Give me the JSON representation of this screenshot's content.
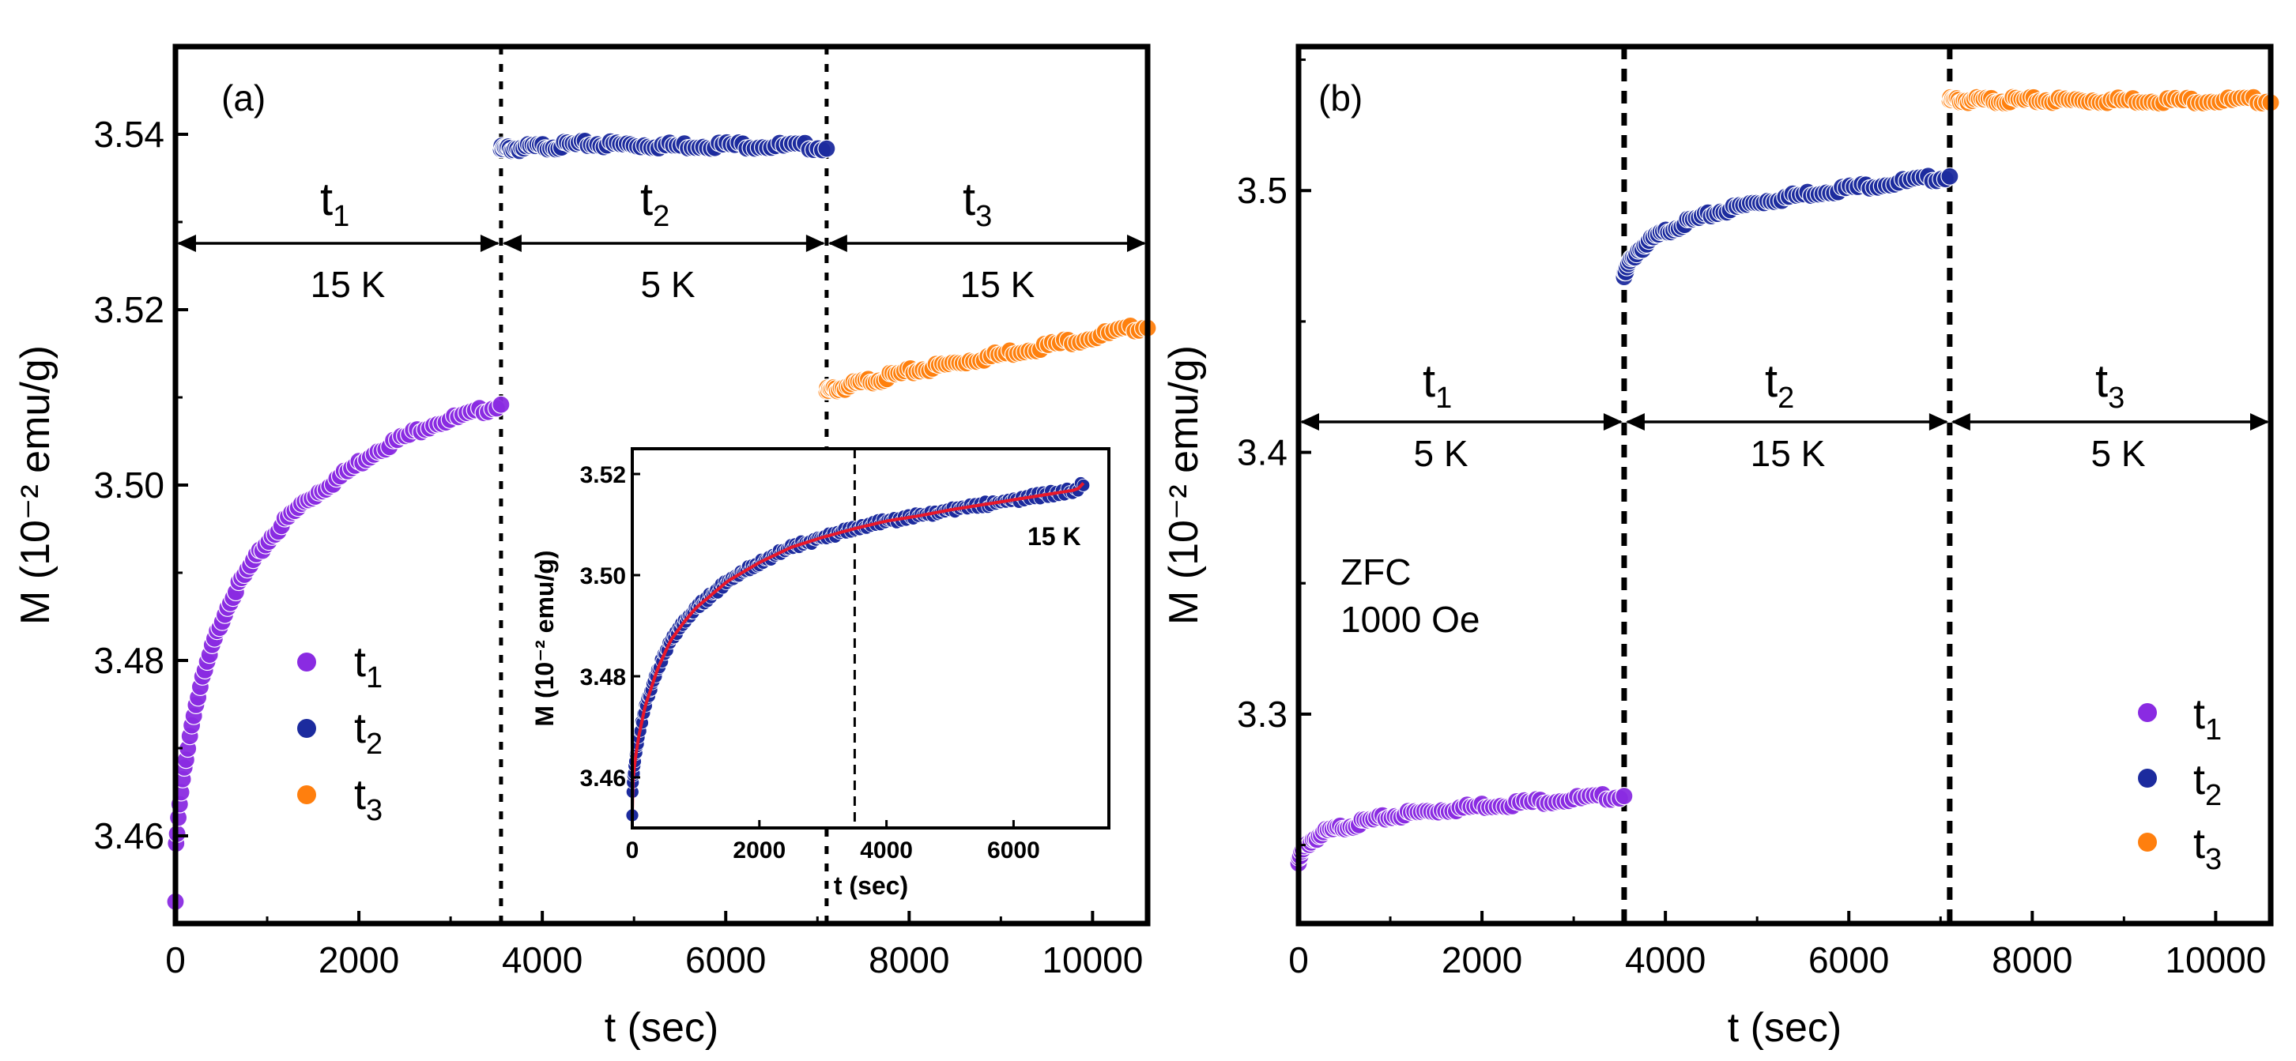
{
  "chart_data": [
    {
      "type": "scatter",
      "panel_label": "(a)",
      "xlabel": "t (sec)",
      "ylabel": "M (10⁻² emu/g)",
      "xlim": [
        0,
        10600
      ],
      "ylim": [
        3.45,
        3.55
      ],
      "xticks": [
        "0",
        "2000",
        "4000",
        "6000",
        "8000",
        "10000"
      ],
      "yticks": [
        "3.46",
        "3.48",
        "3.50",
        "3.52",
        "3.54"
      ],
      "segment_boundaries": [
        3550,
        7100
      ],
      "segments": [
        {
          "name": "t1",
          "temperature": "15 K"
        },
        {
          "name": "t2",
          "temperature": "5 K"
        },
        {
          "name": "t3",
          "temperature": "15 K"
        }
      ],
      "series": [
        {
          "name": "t1",
          "color": "#8a2be2",
          "points": [
            [
              0,
              3.4525
            ],
            [
              5,
              3.4585
            ],
            [
              20,
              3.4605
            ],
            [
              40,
              3.463
            ],
            [
              70,
              3.4655
            ],
            [
              100,
              3.468
            ],
            [
              150,
              3.471
            ],
            [
              200,
              3.474
            ],
            [
              300,
              3.478
            ],
            [
              400,
              3.4815
            ],
            [
              500,
              3.4845
            ],
            [
              600,
              3.487
            ],
            [
              800,
              3.4905
            ],
            [
              1000,
              3.4935
            ],
            [
              1200,
              3.496
            ],
            [
              1400,
              3.498
            ],
            [
              1600,
              3.4995
            ],
            [
              1800,
              3.501
            ],
            [
              2000,
              3.5025
            ],
            [
              2200,
              3.504
            ],
            [
              2400,
              3.505
            ],
            [
              2600,
              3.506
            ],
            [
              2800,
              3.507
            ],
            [
              3000,
              3.5075
            ],
            [
              3200,
              3.508
            ],
            [
              3400,
              3.5087
            ],
            [
              3550,
              3.5092
            ]
          ]
        },
        {
          "name": "t2",
          "color": "#1c2b9e",
          "points": [
            [
              3550,
              3.5383
            ],
            [
              4000,
              3.5386
            ],
            [
              4500,
              3.5389
            ],
            [
              5000,
              3.5388
            ],
            [
              5500,
              3.5387
            ],
            [
              6000,
              3.5388
            ],
            [
              6500,
              3.5387
            ],
            [
              7000,
              3.5386
            ],
            [
              7100,
              3.5384
            ]
          ]
        },
        {
          "name": "t3",
          "color": "#ff7f0e",
          "points": [
            [
              7100,
              3.5107
            ],
            [
              7500,
              3.5117
            ],
            [
              8000,
              3.5129
            ],
            [
              8500,
              3.5139
            ],
            [
              9000,
              3.5149
            ],
            [
              9500,
              3.5159
            ],
            [
              10000,
              3.5169
            ],
            [
              10600,
              3.5182
            ]
          ]
        }
      ],
      "legend": [
        "t1",
        "t2",
        "t3"
      ],
      "inset": {
        "type": "scatter",
        "xlabel": "t (sec)",
        "ylabel": "M (10⁻² emu/g)",
        "annotation": "15 K",
        "xlim": [
          0,
          7500
        ],
        "ylim": [
          3.45,
          3.525
        ],
        "xticks": [
          "0",
          "2000",
          "4000",
          "6000"
        ],
        "yticks": [
          "3.46",
          "3.48",
          "3.50",
          "3.52"
        ],
        "dashed_line_x": 3500,
        "data_color": "#1c2b9e",
        "fit_color": "#e8182a",
        "points": [
          [
            0,
            3.4525
          ],
          [
            5,
            3.4585
          ],
          [
            20,
            3.4605
          ],
          [
            50,
            3.464
          ],
          [
            100,
            3.468
          ],
          [
            200,
            3.474
          ],
          [
            400,
            3.4815
          ],
          [
            600,
            3.487
          ],
          [
            800,
            3.4905
          ],
          [
            1000,
            3.4935
          ],
          [
            1500,
            3.4988
          ],
          [
            2000,
            3.5025
          ],
          [
            2500,
            3.5055
          ],
          [
            3000,
            3.5075
          ],
          [
            3500,
            3.5092
          ],
          [
            4000,
            3.5107
          ],
          [
            4500,
            3.5117
          ],
          [
            5000,
            3.5129
          ],
          [
            5500,
            3.5139
          ],
          [
            6000,
            3.5149
          ],
          [
            6500,
            3.5159
          ],
          [
            7000,
            3.5169
          ],
          [
            7100,
            3.5182
          ]
        ]
      }
    },
    {
      "type": "scatter",
      "panel_label": "(b)",
      "xlabel": "t (sec)",
      "ylabel": "M (10⁻² emu/g)",
      "xlim": [
        0,
        10600
      ],
      "ylim": [
        3.22,
        3.555
      ],
      "xticks": [
        "0",
        "2000",
        "4000",
        "6000",
        "8000",
        "10000"
      ],
      "yticks": [
        "3.3",
        "3.4",
        "3.5"
      ],
      "segment_boundaries": [
        3550,
        7100
      ],
      "segments": [
        {
          "name": "t1",
          "temperature": "5 K"
        },
        {
          "name": "t2",
          "temperature": "15 K"
        },
        {
          "name": "t3",
          "temperature": "5 K"
        }
      ],
      "annotation": [
        "ZFC",
        "1000 Oe"
      ],
      "series": [
        {
          "name": "t1",
          "color": "#8a2be2",
          "points": [
            [
              0,
              3.243
            ],
            [
              20,
              3.246
            ],
            [
              60,
              3.249
            ],
            [
              150,
              3.252
            ],
            [
              300,
              3.255
            ],
            [
              500,
              3.257
            ],
            [
              800,
              3.2595
            ],
            [
              1200,
              3.262
            ],
            [
              1600,
              3.2635
            ],
            [
              2000,
              3.265
            ],
            [
              2400,
              3.266
            ],
            [
              2800,
              3.2672
            ],
            [
              3200,
              3.268
            ],
            [
              3550,
              3.2688
            ]
          ]
        },
        {
          "name": "t2",
          "color": "#1c2b9e",
          "points": [
            [
              3550,
              3.467
            ],
            [
              3600,
              3.472
            ],
            [
              3700,
              3.477
            ],
            [
              3900,
              3.4825
            ],
            [
              4200,
              3.4875
            ],
            [
              4600,
              3.492
            ],
            [
              5000,
              3.4955
            ],
            [
              5500,
              3.4985
            ],
            [
              6000,
              3.501
            ],
            [
              6500,
              3.503
            ],
            [
              7000,
              3.505
            ],
            [
              7100,
              3.5055
            ]
          ]
        },
        {
          "name": "t3",
          "color": "#ff7f0e",
          "points": [
            [
              7100,
              3.5345
            ],
            [
              8000,
              3.5345
            ],
            [
              9000,
              3.5345
            ],
            [
              10000,
              3.5345
            ],
            [
              10600,
              3.5345
            ]
          ]
        }
      ],
      "legend": [
        "t1",
        "t2",
        "t3"
      ]
    }
  ]
}
